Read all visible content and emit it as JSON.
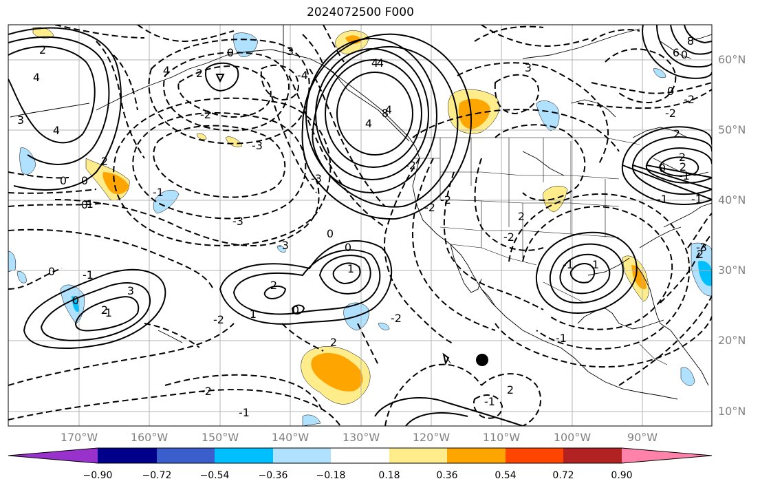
{
  "title": "2024072500 F000",
  "map": {
    "lat_labels": [
      "60°N",
      "50°N",
      "40°N",
      "30°N",
      "20°N",
      "10°N"
    ],
    "lon_labels": [
      "170°W",
      "160°W",
      "150°W",
      "140°W",
      "130°W",
      "120°W",
      "110°W",
      "100°W",
      "90°W"
    ],
    "contour_labels": [
      "2",
      "4",
      "3",
      "2",
      "4",
      "0",
      "-3",
      "-4",
      "-2",
      "-3",
      "-3",
      "-2",
      "-1",
      "0",
      "-1",
      "4",
      "8",
      "4",
      "3",
      "4",
      "0",
      "2",
      "0",
      "-3",
      "-2",
      "0",
      "-2",
      "-2",
      "1",
      "0",
      "0",
      "1",
      "2",
      "0",
      "-1",
      "0",
      "-1",
      "2",
      "3",
      "2",
      "-2",
      "-2",
      "2",
      "-2",
      "-1",
      "2",
      "-1",
      "-1",
      "1",
      "0",
      "-1",
      "-2",
      "-2",
      "2",
      "2",
      "0",
      "-1",
      "-1",
      "2",
      "-3",
      "-1",
      "2",
      "4",
      "4",
      "6",
      "8",
      "0",
      "3"
    ],
    "marker": "filled-circle"
  },
  "colorbar": {
    "ticks": [
      "−0.90",
      "−0.72",
      "−0.54",
      "−0.36",
      "−0.18",
      "0.18",
      "0.36",
      "0.54",
      "0.72",
      "0.90"
    ],
    "colors": [
      "#9932cc",
      "#00008b",
      "#3a5fcd",
      "#00bfff",
      "#b0e2ff",
      "#ffffff",
      "#ffec8b",
      "#ffa500",
      "#ff4500",
      "#b22222",
      "#ff82ab"
    ]
  }
}
